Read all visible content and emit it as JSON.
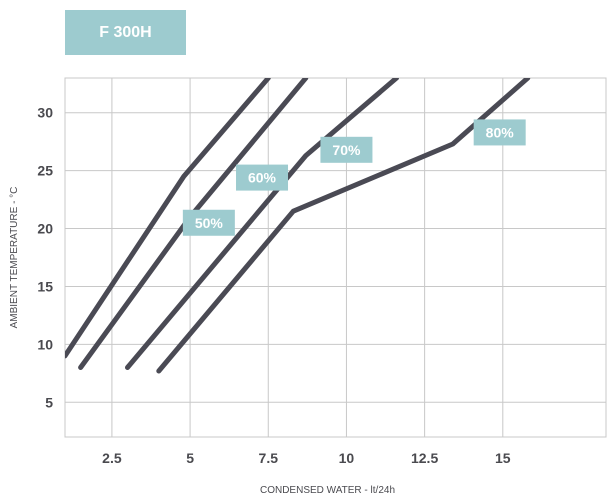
{
  "title": "F 300H",
  "chart_data": {
    "type": "line",
    "xlabel": "CONDENSED WATER - lt/24h",
    "ylabel": "AMBIENT TEMPERATURE - °C",
    "xlim": [
      1,
      18.3
    ],
    "ylim": [
      2,
      33
    ],
    "x_ticks": [
      2.5,
      5,
      7.5,
      10,
      12.5,
      15
    ],
    "x_tick_labels": [
      "2.5",
      "5",
      "7.5",
      "10",
      "12.5",
      "15"
    ],
    "y_ticks": [
      5,
      10,
      15,
      20,
      25,
      30
    ],
    "y_tick_labels": [
      "5",
      "10",
      "15",
      "20",
      "25",
      "30"
    ],
    "grid": true,
    "series": [
      {
        "name": "50%",
        "points": [
          [
            1.0,
            9.0
          ],
          [
            4.8,
            24.5
          ],
          [
            7.5,
            33.0
          ]
        ]
      },
      {
        "name": "60%",
        "points": [
          [
            1.5,
            8.0
          ],
          [
            5.0,
            21.0
          ],
          [
            8.7,
            33.0
          ]
        ]
      },
      {
        "name": "70%",
        "points": [
          [
            3.0,
            8.0
          ],
          [
            8.7,
            26.3
          ],
          [
            11.6,
            33.0
          ]
        ]
      },
      {
        "name": "80%",
        "points": [
          [
            4.0,
            7.7
          ],
          [
            8.3,
            21.5
          ],
          [
            13.4,
            27.3
          ],
          [
            15.8,
            33.0
          ]
        ]
      }
    ],
    "colors": {
      "line": "#4a4a54",
      "grid": "#c8c8c8",
      "label_bg": "#9dcbcf"
    }
  }
}
